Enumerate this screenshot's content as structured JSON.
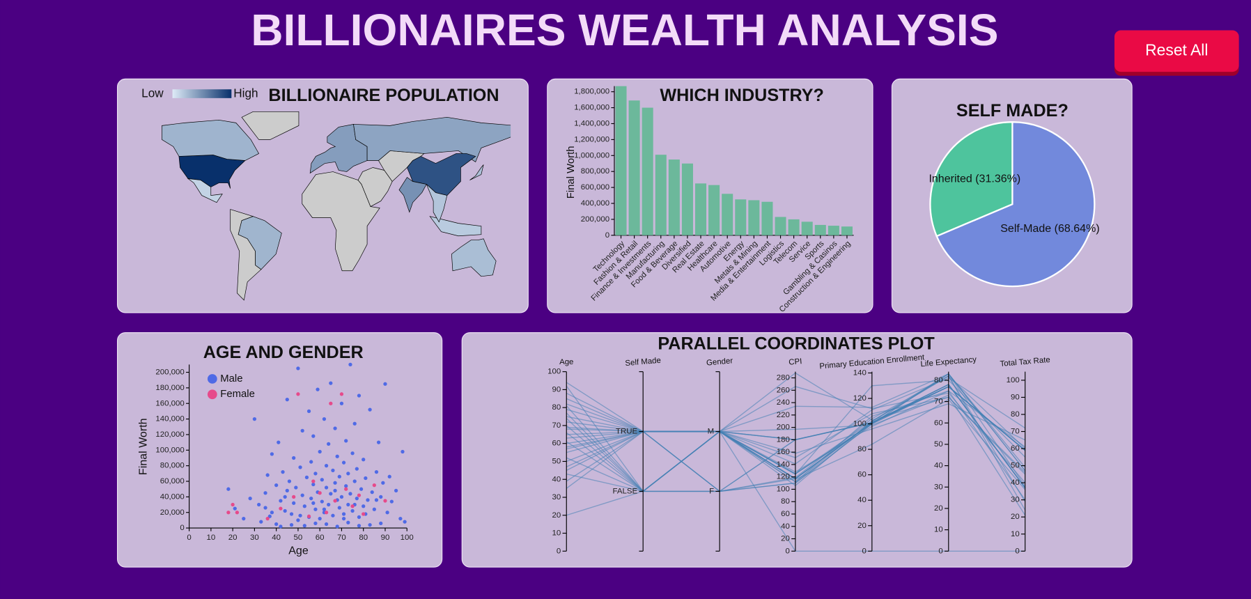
{
  "title": "BILLIONAIRES WEALTH ANALYSIS",
  "button": "Reset All",
  "chart_data": [
    {
      "type": "map",
      "title": "BILLIONAIRE POPULATION",
      "legend_low": "Low",
      "legend_high": "High",
      "values": [
        735,
        64,
        12,
        62,
        127,
        105,
        495,
        169,
        40,
        43,
        22,
        30
      ],
      "color_low": "#deebf7",
      "color_high": "#08306b",
      "color_scale": "sqrt"
    },
    {
      "type": "bar",
      "title": "WHICH INDUSTRY?",
      "ylabel": "Final Worth",
      "color": "#6cb89b",
      "categories": [
        "Technology",
        "Fashion & Retail",
        "Finance & Investments",
        "Manufacturing",
        "Food & Beverage",
        "Diversified",
        "Real Estate",
        "Healthcare",
        "Automotive",
        "Energy",
        "Metals & Mining",
        "Media & Entertainment",
        "Logistics",
        "Telecom",
        "Service",
        "Sports",
        "Gambling & Casinos",
        "Construction & Engineering"
      ],
      "values": [
        1870000,
        1690000,
        1600000,
        1010000,
        950000,
        900000,
        650000,
        630000,
        520000,
        450000,
        440000,
        420000,
        230000,
        200000,
        170000,
        130000,
        120000,
        110000
      ],
      "ylim": [
        0,
        1870000
      ],
      "yticks": [
        0,
        {
          "value": 200000,
          "label": "200,000"
        },
        {
          "value": 400000,
          "label": "400,000"
        },
        {
          "value": 600000,
          "label": "600,000"
        },
        {
          "value": 800000,
          "label": "800,000"
        },
        {
          "value": 1000000,
          "label": "1,000,000"
        },
        {
          "value": 1200000,
          "label": "1,200,000"
        },
        {
          "value": 1400000,
          "label": "1,400,000"
        },
        {
          "value": 1600000,
          "label": "1,600,000"
        },
        {
          "value": 1800000,
          "label": "1,800,000"
        }
      ]
    },
    {
      "type": "pie",
      "title": "SELF MADE?",
      "values": [
        68.64,
        31.36
      ],
      "value_labels": [
        "Self-Made (68.64%)",
        "Inherited (31.36%)"
      ],
      "colors": [
        "#7289dc",
        "#4ec49d"
      ]
    },
    {
      "type": "scatter",
      "title": "AGE AND GENDER",
      "xlabel": "Age",
      "ylabel": "Final Worth",
      "xlim": [
        0,
        100
      ],
      "xticks": [
        0,
        10,
        20,
        30,
        40,
        50,
        60,
        70,
        80,
        90,
        100
      ],
      "ylim": [
        0,
        210000
      ],
      "yticks": [
        0,
        {
          "value": 20000,
          "label": "20,000"
        },
        {
          "value": 40000,
          "label": "40,000"
        },
        {
          "value": 60000,
          "label": "60,000"
        },
        {
          "value": 80000,
          "label": "80,000"
        },
        {
          "value": 100000,
          "label": "100,000"
        },
        {
          "value": 120000,
          "label": "120,000"
        },
        {
          "value": 140000,
          "label": "140,000"
        },
        {
          "value": 160000,
          "label": "160,000"
        },
        {
          "value": 180000,
          "label": "180,000"
        },
        {
          "value": 200000,
          "label": "200,000"
        }
      ],
      "series": [
        {
          "name": "Male",
          "color": "#4f6ae6",
          "x": [
            18,
            21,
            25,
            28,
            30,
            32,
            33,
            35,
            36,
            37,
            38,
            38,
            40,
            40,
            41,
            42,
            43,
            44,
            45,
            45,
            46,
            47,
            48,
            48,
            49,
            50,
            50,
            51,
            52,
            52,
            53,
            54,
            55,
            55,
            56,
            56,
            57,
            57,
            58,
            58,
            59,
            59,
            60,
            60,
            61,
            61,
            62,
            62,
            63,
            63,
            64,
            64,
            65,
            65,
            66,
            66,
            67,
            67,
            68,
            68,
            69,
            69,
            70,
            70,
            71,
            71,
            72,
            72,
            73,
            73,
            74,
            74,
            75,
            75,
            76,
            76,
            77,
            77,
            78,
            78,
            79,
            80,
            80,
            81,
            82,
            83,
            84,
            85,
            86,
            87,
            88,
            89,
            90,
            91,
            92,
            93,
            95,
            97,
            98,
            99,
            42,
            47,
            53,
            58,
            63,
            68,
            73,
            78,
            83,
            88,
            35,
            44,
            51,
            57,
            62,
            67,
            71,
            76,
            81,
            86
          ],
          "values": [
            50000,
            25000,
            12000,
            38000,
            140000,
            30000,
            8000,
            45000,
            68000,
            15000,
            20000,
            95000,
            55000,
            5000,
            110000,
            35000,
            72000,
            22000,
            165000,
            48000,
            60000,
            18000,
            90000,
            32000,
            52000,
            205000,
            10000,
            78000,
            125000,
            42000,
            28000,
            65000,
            150000,
            14000,
            85000,
            38000,
            56000,
            118000,
            24000,
            70000,
            46000,
            178000,
            12000,
            98000,
            34000,
            62000,
            140000,
            20000,
            80000,
            52000,
            30000,
            108000,
            44000,
            186000,
            16000,
            74000,
            58000,
            128000,
            36000,
            92000,
            26000,
            66000,
            160000,
            40000,
            84000,
            18000,
            54000,
            112000,
            30000,
            70000,
            210000,
            44000,
            22000,
            96000,
            60000,
            134000,
            38000,
            76000,
            14000,
            170000,
            50000,
            28000,
            88000,
            64000,
            36000,
            152000,
            46000,
            24000,
            72000,
            110000,
            40000,
            58000,
            185000,
            20000,
            66000,
            34000,
            48000,
            12000,
            98000,
            8000,
            2000,
            4000,
            3000,
            6000,
            5000,
            2000,
            7000,
            3000,
            4000,
            6000,
            26000,
            40000,
            16000,
            32000,
            24000,
            48000,
            12000,
            30000,
            18000,
            36000
          ]
        },
        {
          "name": "Female",
          "color": "#e64a8b",
          "x": [
            18,
            20,
            22,
            36,
            42,
            48,
            50,
            55,
            57,
            60,
            63,
            65,
            67,
            70,
            72,
            75,
            78,
            80,
            85,
            90
          ],
          "values": [
            20000,
            30000,
            20000,
            12000,
            25000,
            40000,
            172000,
            15000,
            60000,
            45000,
            20000,
            160000,
            35000,
            172000,
            50000,
            28000,
            42000,
            18000,
            55000,
            35000
          ]
        }
      ]
    },
    {
      "type": "parallel",
      "title": "PARALLEL COORDINATES PLOT",
      "color": "#4682b4",
      "dimensions": [
        {
          "name": "Age",
          "lim": [
            0,
            100
          ],
          "ticks": [
            0,
            10,
            20,
            30,
            40,
            50,
            60,
            70,
            80,
            90,
            100
          ]
        },
        {
          "name": "Self Made",
          "categories": [
            "TRUE",
            "FALSE"
          ]
        },
        {
          "name": "Gender",
          "categories": [
            "M",
            "F"
          ]
        },
        {
          "name": "CPI",
          "lim": [
            0,
            290
          ],
          "ticks": [
            0,
            20,
            40,
            60,
            80,
            100,
            120,
            140,
            160,
            180,
            200,
            220,
            240,
            260,
            280
          ]
        },
        {
          "name": "Primary Education Enrollment",
          "lim": [
            0,
            141
          ],
          "ticks": [
            0,
            20,
            40,
            60,
            80,
            100,
            120,
            140
          ]
        },
        {
          "name": "Life Expectancy",
          "lim": [
            0,
            84
          ],
          "ticks": [
            0,
            10,
            20,
            30,
            40,
            50,
            60,
            70,
            80
          ]
        },
        {
          "name": "Total Tax Rate",
          "lim": [
            0,
            105
          ],
          "ticks": [
            0,
            10,
            20,
            30,
            40,
            50,
            60,
            70,
            80,
            90,
            100
          ]
        }
      ],
      "records": [
        [
          65,
          "TRUE",
          "M",
          117,
          101,
          78,
          37
        ],
        [
          50,
          "TRUE",
          "M",
          125,
          102,
          82,
          60
        ],
        [
          74,
          "FALSE",
          "M",
          180,
          101,
          77,
          59
        ],
        [
          82,
          "TRUE",
          "M",
          117,
          101,
          78,
          37
        ],
        [
          45,
          "TRUE",
          "F",
          110,
          100,
          83,
          47
        ],
        [
          92,
          "FALSE",
          "F",
          180,
          101,
          77,
          59
        ],
        [
          58,
          "TRUE",
          "M",
          125,
          100,
          77,
          59
        ],
        [
          39,
          "TRUE",
          "M",
          117,
          101,
          78,
          37
        ],
        [
          70,
          "FALSE",
          "M",
          112,
          102,
          83,
          49
        ],
        [
          63,
          "TRUE",
          "M",
          128,
          98,
          75,
          61
        ],
        [
          55,
          "TRUE",
          "M",
          180,
          101,
          77,
          59
        ],
        [
          81,
          "FALSE",
          "F",
          110,
          100,
          83,
          47
        ],
        [
          68,
          "TRUE",
          "M",
          0,
          0,
          0,
          0
        ],
        [
          47,
          "TRUE",
          "M",
          151,
          108,
          72,
          46
        ],
        [
          77,
          "FALSE",
          "M",
          234,
          113,
          83,
          38
        ],
        [
          60,
          "TRUE",
          "F",
          117,
          101,
          78,
          37
        ],
        [
          88,
          "TRUE",
          "M",
          141,
          111,
          81,
          72
        ],
        [
          52,
          "FALSE",
          "M",
          125,
          100,
          77,
          59
        ],
        [
          72,
          "TRUE",
          "M",
          180,
          101,
          77,
          59
        ],
        [
          35,
          "TRUE",
          "M",
          288,
          103,
          72,
          45
        ],
        [
          66,
          "FALSE",
          "F",
          119,
          104,
          82,
          29
        ],
        [
          79,
          "TRUE",
          "M",
          158,
          96,
          69,
          65
        ],
        [
          43,
          "FALSE",
          "M",
          112,
          106,
          75,
          30
        ],
        [
          94,
          "TRUE",
          "M",
          117,
          101,
          78,
          37
        ],
        [
          57,
          "TRUE",
          "M",
          197,
          99,
          73,
          21
        ],
        [
          61,
          "FALSE",
          "M",
          106,
          102,
          82,
          24
        ],
        [
          75,
          "TRUE",
          "M",
          266,
          112,
          74,
          40
        ],
        [
          20,
          "FALSE",
          "M",
          116,
          84,
          71,
          36
        ],
        [
          85,
          "TRUE",
          "F",
          180,
          101,
          77,
          59
        ],
        [
          69,
          "TRUE",
          "M",
          124,
          130,
          80,
          55
        ]
      ]
    }
  ]
}
